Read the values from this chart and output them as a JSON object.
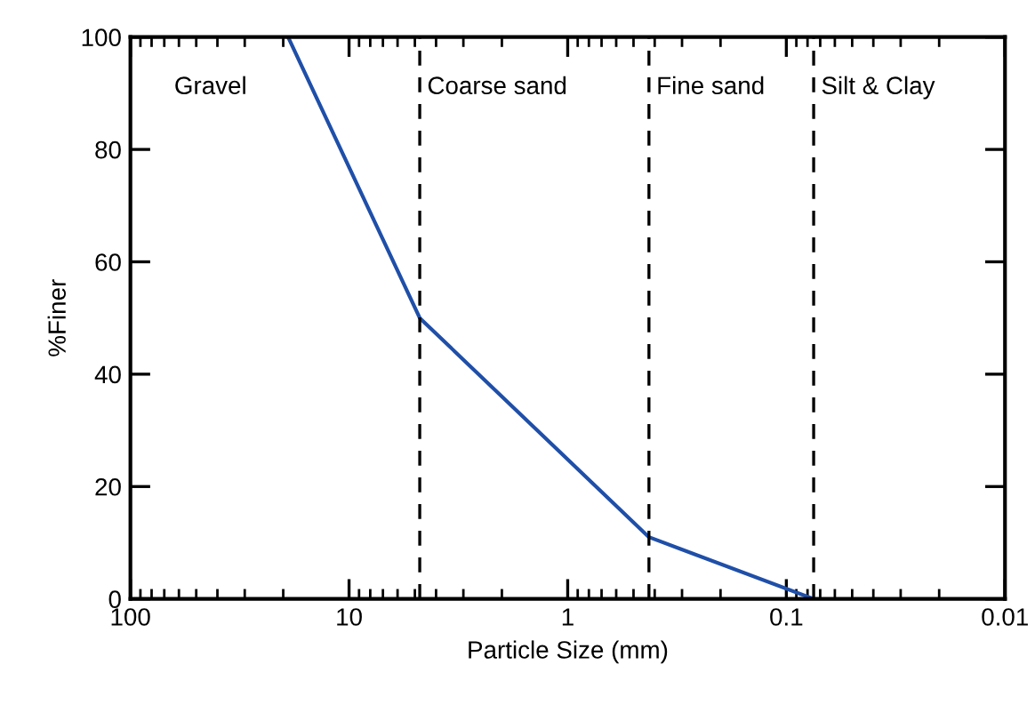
{
  "chart_data": {
    "type": "line",
    "xlabel": "Particle Size (mm)",
    "ylabel": "%Finer",
    "log": "x",
    "xlim": [
      100,
      0.01
    ],
    "xticks": [
      100,
      10,
      1,
      0.1,
      0.01
    ],
    "ylim": [
      0,
      100
    ],
    "yticks": [
      0,
      20,
      40,
      60,
      80,
      100
    ],
    "grid": false,
    "marker": "none",
    "line_style": "solid",
    "series": [
      {
        "color": "#1f4fa8",
        "x": [
          19,
          4.75,
          0.425,
          0.075
        ],
        "values": [
          100,
          50,
          11,
          0
        ]
      }
    ],
    "ref_lines": [
      {
        "axis": "x",
        "value": 4.75,
        "color": "#000000",
        "line_style": "dashed"
      },
      {
        "axis": "x",
        "value": 0.425,
        "color": "#000000",
        "line_style": "dashed"
      },
      {
        "axis": "x",
        "value": 0.075,
        "color": "#000000",
        "line_style": "dashed"
      }
    ],
    "annotations": [
      "Gravel",
      "Coarse sand",
      "Fine sand",
      "Silt & Clay"
    ]
  }
}
